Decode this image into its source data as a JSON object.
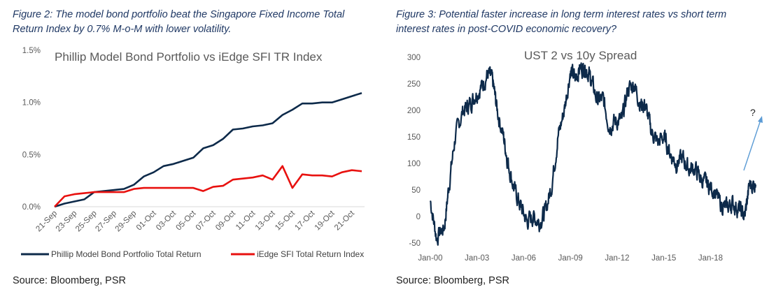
{
  "figure1": {
    "caption": "Figure 2: The model bond portfolio beat the Singapore Fixed Income Total Return Index by 0.7% M-o-M with lower volatility.",
    "source": "Source: Bloomberg, PSR"
  },
  "figure2": {
    "caption": "Figure 3: Potential faster increase in long term interest rates vs short term interest rates in post-COVID economic recovery?",
    "source": "Source: Bloomberg, PSR",
    "annotation": "?"
  },
  "colors": {
    "navy": "#0d2a4a",
    "red": "#e8110f",
    "arrow": "#5b9bd5",
    "axis": "#d9d9d9",
    "caption": "#1f3864"
  },
  "chart_data": [
    {
      "type": "line",
      "title": "Phillip Model Bond Portfolio vs iEdge SFI TR Index",
      "x": [
        "21-Sep",
        "22-Sep",
        "23-Sep",
        "24-Sep",
        "25-Sep",
        "26-Sep",
        "27-Sep",
        "28-Sep",
        "29-Sep",
        "30-Sep",
        "01-Oct",
        "02-Oct",
        "03-Oct",
        "04-Oct",
        "05-Oct",
        "06-Oct",
        "07-Oct",
        "08-Oct",
        "09-Oct",
        "10-Oct",
        "11-Oct",
        "12-Oct",
        "13-Oct",
        "14-Oct",
        "15-Oct",
        "16-Oct",
        "17-Oct",
        "18-Oct",
        "19-Oct",
        "20-Oct",
        "21-Oct",
        "22-Oct"
      ],
      "tick_labels": [
        "21-Sep",
        "23-Sep",
        "25-Sep",
        "27-Sep",
        "29-Sep",
        "01-Oct",
        "03-Oct",
        "05-Oct",
        "07-Oct",
        "09-Oct",
        "11-Oct",
        "13-Oct",
        "15-Oct",
        "17-Oct",
        "19-Oct",
        "21-Oct"
      ],
      "y_tick_labels": [
        "0.0%",
        "0.5%",
        "1.0%",
        "1.5%"
      ],
      "ylim": [
        0,
        1.5
      ],
      "series": [
        {
          "name": "Phillip Model Bond Portfolio Total Return",
          "values": [
            0.0,
            0.03,
            0.05,
            0.07,
            0.14,
            0.15,
            0.16,
            0.17,
            0.21,
            0.29,
            0.33,
            0.39,
            0.41,
            0.44,
            0.47,
            0.56,
            0.59,
            0.65,
            0.74,
            0.75,
            0.77,
            0.78,
            0.8,
            0.88,
            0.93,
            0.99,
            0.99,
            1.0,
            1.0,
            1.03,
            1.06,
            1.09
          ]
        },
        {
          "name": "iEdge SFI Total Return Index",
          "values": [
            0.0,
            0.1,
            0.12,
            0.13,
            0.14,
            0.14,
            0.14,
            0.14,
            0.17,
            0.18,
            0.18,
            0.18,
            0.18,
            0.18,
            0.18,
            0.15,
            0.19,
            0.2,
            0.26,
            0.27,
            0.28,
            0.3,
            0.26,
            0.39,
            0.18,
            0.31,
            0.3,
            0.3,
            0.29,
            0.33,
            0.35,
            0.34
          ]
        }
      ],
      "legend": "bottom"
    },
    {
      "type": "line",
      "title": "UST 2 vs 10y Spread",
      "y_tick_labels": [
        "-50",
        "0",
        "50",
        "100",
        "150",
        "200",
        "250",
        "300"
      ],
      "x_tick_labels": [
        "Jan-00",
        "Jan-03",
        "Jan-06",
        "Jan-09",
        "Jan-12",
        "Jan-15",
        "Jan-18"
      ],
      "ylim": [
        -50,
        300
      ],
      "xlim": [
        2000.0,
        2020.9
      ],
      "x_keypoints": [
        2000.0,
        2000.4,
        2000.9,
        2001.2,
        2001.6,
        2002.1,
        2002.5,
        2002.9,
        2003.3,
        2003.7,
        2004.0,
        2004.3,
        2004.7,
        2005.0,
        2005.4,
        2005.8,
        2006.2,
        2006.6,
        2007.0,
        2007.4,
        2007.8,
        2008.2,
        2008.6,
        2009.0,
        2009.3,
        2009.6,
        2010.0,
        2010.3,
        2010.7,
        2011.1,
        2011.5,
        2011.9,
        2012.3,
        2012.7,
        2013.1,
        2013.5,
        2013.8,
        2014.2,
        2014.6,
        2015.0,
        2015.4,
        2015.8,
        2016.2,
        2016.6,
        2017.0,
        2017.4,
        2017.8,
        2018.2,
        2018.6,
        2019.0,
        2019.4,
        2019.8,
        2020.2,
        2020.5,
        2020.9
      ],
      "y_keypoints": [
        30,
        -40,
        -20,
        60,
        150,
        200,
        210,
        230,
        245,
        270,
        255,
        200,
        150,
        100,
        50,
        20,
        -10,
        0,
        -10,
        10,
        60,
        150,
        200,
        275,
        260,
        280,
        280,
        260,
        220,
        220,
        170,
        180,
        180,
        240,
        250,
        210,
        210,
        160,
        140,
        150,
        120,
        100,
        110,
        90,
        90,
        70,
        60,
        50,
        25,
        15,
        25,
        15,
        0,
        60,
        60
      ],
      "series": [
        {
          "name": ""
        }
      ],
      "grid": false
    }
  ]
}
